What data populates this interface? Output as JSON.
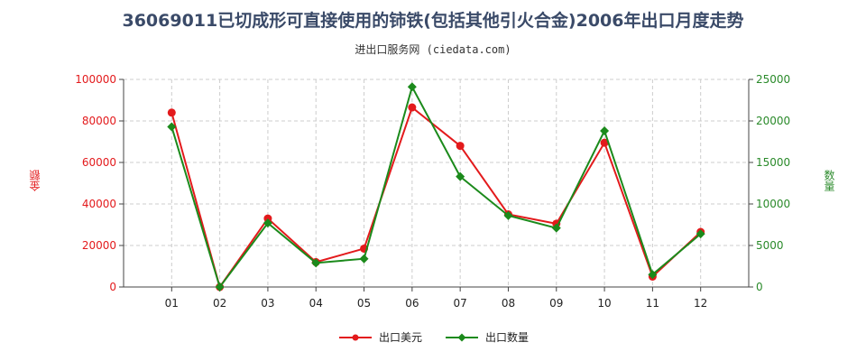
{
  "title": "36069011已切成形可直接使用的铈铁(包括其他引火合金)2006年出口月度走势",
  "subtitle": "进出口服务网 (ciedata.com)",
  "colors": {
    "series_usd": "#e31a1c",
    "series_qty": "#1b8a1b",
    "left_axis": "#e31a1c",
    "right_axis": "#2a8a2a",
    "grid": "#cccccc"
  },
  "chart_data": {
    "type": "line",
    "categories": [
      "01",
      "02",
      "03",
      "04",
      "05",
      "06",
      "07",
      "08",
      "09",
      "10",
      "11",
      "12"
    ],
    "y_left": {
      "label": "金额",
      "min": 0,
      "max": 100000,
      "ticks": [
        0,
        20000,
        40000,
        60000,
        80000,
        100000
      ]
    },
    "y_right": {
      "label": "数量",
      "min": 0,
      "max": 25000,
      "ticks": [
        0,
        5000,
        10000,
        15000,
        20000,
        25000
      ]
    },
    "grid": true,
    "legend_position": "bottom",
    "series": [
      {
        "name": "出口美元",
        "axis": "left",
        "marker": "circle",
        "values": [
          84000,
          0,
          33000,
          12000,
          18500,
          86500,
          68000,
          35000,
          30500,
          69500,
          5000,
          26500
        ]
      },
      {
        "name": "出口数量",
        "axis": "right",
        "marker": "diamond",
        "values": [
          19300,
          0,
          7700,
          2900,
          3400,
          24100,
          13300,
          8600,
          7100,
          18800,
          1500,
          6400
        ]
      }
    ]
  }
}
